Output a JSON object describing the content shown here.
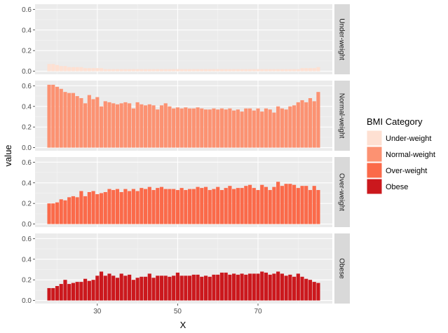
{
  "chart_data": {
    "type": "bar",
    "layout": "faceted-rows",
    "xlabel": "X",
    "ylabel": "value",
    "x_ticks": [
      30,
      50,
      70
    ],
    "y_ticks": [
      0.0,
      0.2,
      0.4,
      0.6
    ],
    "y_tick_labels": [
      "0.0",
      "0.2",
      "0.4",
      "0.6"
    ],
    "x_tick_labels": [
      "30",
      "50",
      "70"
    ],
    "ylim": [
      -0.03,
      0.65
    ],
    "xlim": [
      14.5,
      88.5
    ],
    "x": [
      18,
      19,
      20,
      21,
      22,
      23,
      24,
      25,
      26,
      27,
      28,
      29,
      30,
      31,
      32,
      33,
      34,
      35,
      36,
      37,
      38,
      39,
      40,
      41,
      42,
      43,
      44,
      45,
      46,
      47,
      48,
      49,
      50,
      51,
      52,
      53,
      54,
      55,
      56,
      57,
      58,
      59,
      60,
      61,
      62,
      63,
      64,
      65,
      66,
      67,
      68,
      69,
      70,
      71,
      72,
      73,
      74,
      75,
      76,
      77,
      78,
      79,
      80,
      81,
      82,
      83,
      84,
      85
    ],
    "legend": {
      "title": "BMI Category",
      "position": "right"
    },
    "grid": true,
    "series": [
      {
        "name": "Under-weight",
        "color": "#fee0d2",
        "values": [
          0.07,
          0.07,
          0.06,
          0.05,
          0.05,
          0.04,
          0.04,
          0.04,
          0.04,
          0.03,
          0.03,
          0.03,
          0.03,
          0.03,
          0.02,
          0.02,
          0.02,
          0.02,
          0.02,
          0.02,
          0.02,
          0.02,
          0.02,
          0.02,
          0.02,
          0.02,
          0.02,
          0.02,
          0.02,
          0.02,
          0.02,
          0.02,
          0.02,
          0.02,
          0.02,
          0.02,
          0.02,
          0.02,
          0.02,
          0.02,
          0.02,
          0.02,
          0.02,
          0.02,
          0.02,
          0.02,
          0.02,
          0.02,
          0.02,
          0.02,
          0.02,
          0.02,
          0.02,
          0.02,
          0.02,
          0.02,
          0.02,
          0.02,
          0.02,
          0.02,
          0.02,
          0.02,
          0.02,
          0.03,
          0.03,
          0.03,
          0.03,
          0.04
        ]
      },
      {
        "name": "Normal-weight",
        "color": "#fc9272",
        "values": [
          0.61,
          0.61,
          0.59,
          0.57,
          0.54,
          0.53,
          0.53,
          0.5,
          0.48,
          0.43,
          0.51,
          0.47,
          0.49,
          0.4,
          0.45,
          0.44,
          0.43,
          0.42,
          0.43,
          0.44,
          0.43,
          0.38,
          0.44,
          0.42,
          0.41,
          0.42,
          0.41,
          0.37,
          0.41,
          0.43,
          0.4,
          0.38,
          0.39,
          0.38,
          0.39,
          0.38,
          0.38,
          0.39,
          0.38,
          0.37,
          0.37,
          0.38,
          0.37,
          0.38,
          0.37,
          0.38,
          0.36,
          0.37,
          0.35,
          0.38,
          0.38,
          0.36,
          0.38,
          0.35,
          0.38,
          0.37,
          0.34,
          0.4,
          0.38,
          0.37,
          0.4,
          0.41,
          0.44,
          0.46,
          0.44,
          0.48,
          0.45,
          0.54
        ]
      },
      {
        "name": "Over-weight",
        "color": "#fb6a4a",
        "values": [
          0.2,
          0.2,
          0.21,
          0.24,
          0.23,
          0.26,
          0.27,
          0.26,
          0.32,
          0.27,
          0.31,
          0.32,
          0.29,
          0.3,
          0.31,
          0.34,
          0.33,
          0.34,
          0.31,
          0.34,
          0.32,
          0.34,
          0.32,
          0.35,
          0.34,
          0.36,
          0.33,
          0.35,
          0.36,
          0.34,
          0.34,
          0.34,
          0.33,
          0.35,
          0.33,
          0.34,
          0.34,
          0.36,
          0.35,
          0.36,
          0.33,
          0.34,
          0.36,
          0.33,
          0.35,
          0.37,
          0.34,
          0.35,
          0.35,
          0.37,
          0.38,
          0.35,
          0.33,
          0.38,
          0.36,
          0.33,
          0.36,
          0.41,
          0.37,
          0.39,
          0.39,
          0.38,
          0.35,
          0.37,
          0.37,
          0.33,
          0.37,
          0.33
        ]
      },
      {
        "name": "Obese",
        "color": "#cb181d",
        "values": [
          0.12,
          0.12,
          0.14,
          0.16,
          0.2,
          0.16,
          0.17,
          0.18,
          0.18,
          0.21,
          0.19,
          0.2,
          0.24,
          0.28,
          0.24,
          0.26,
          0.24,
          0.22,
          0.26,
          0.24,
          0.25,
          0.2,
          0.22,
          0.23,
          0.23,
          0.26,
          0.22,
          0.24,
          0.24,
          0.24,
          0.23,
          0.24,
          0.27,
          0.24,
          0.24,
          0.24,
          0.25,
          0.25,
          0.23,
          0.24,
          0.23,
          0.25,
          0.25,
          0.27,
          0.27,
          0.25,
          0.26,
          0.25,
          0.26,
          0.25,
          0.26,
          0.26,
          0.26,
          0.28,
          0.27,
          0.25,
          0.26,
          0.28,
          0.26,
          0.24,
          0.25,
          0.23,
          0.26,
          0.23,
          0.21,
          0.2,
          0.18,
          0.17
        ]
      }
    ]
  }
}
